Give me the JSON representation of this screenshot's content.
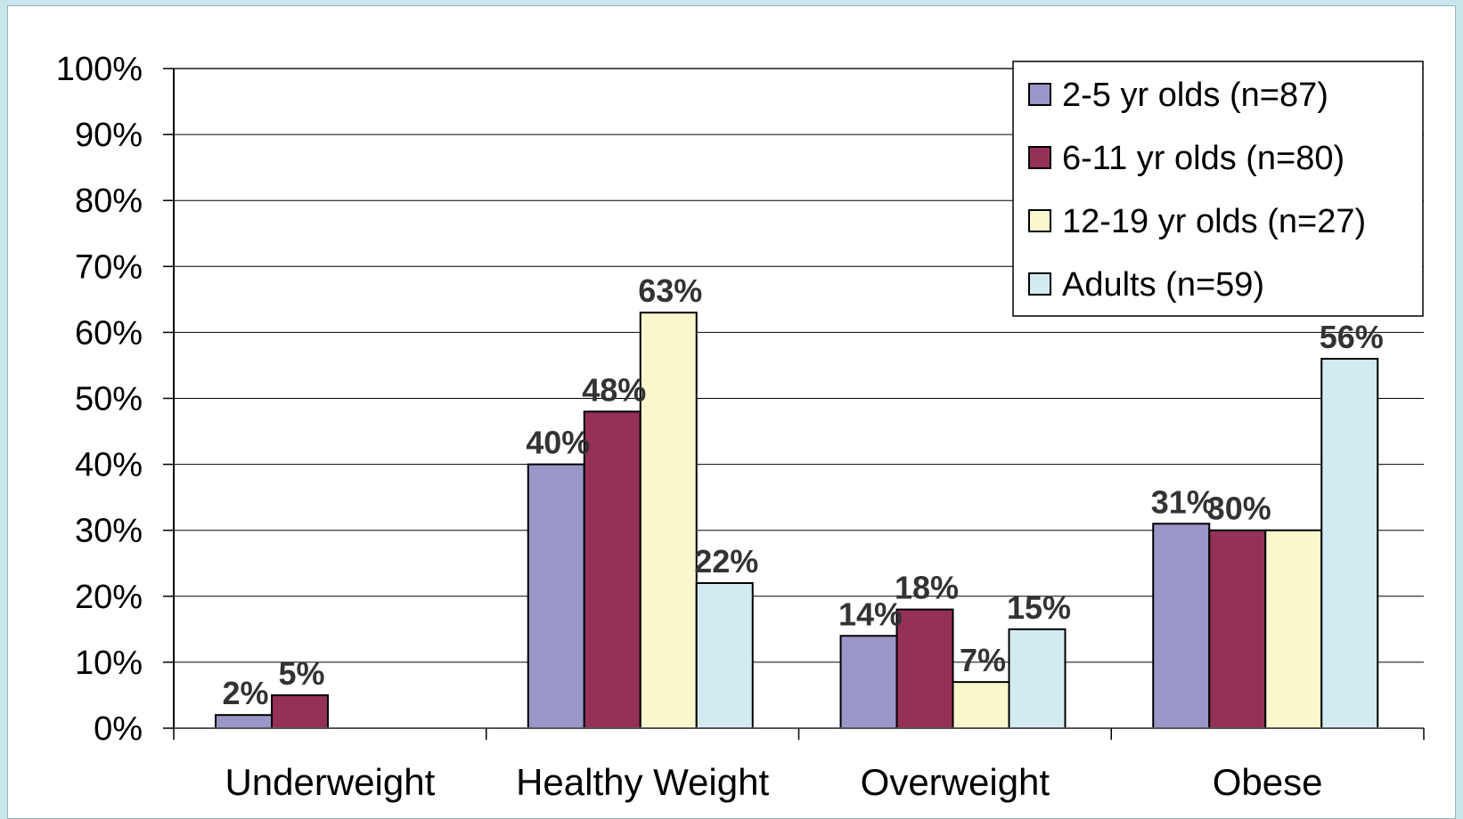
{
  "chart_data": {
    "type": "bar",
    "title": "",
    "xlabel": "",
    "ylabel": "",
    "ylim": [
      0,
      100
    ],
    "y_ticks": [
      "0%",
      "10%",
      "20%",
      "30%",
      "40%",
      "50%",
      "60%",
      "70%",
      "80%",
      "90%",
      "100%"
    ],
    "grid": true,
    "legend_position": "top-right",
    "categories": [
      "Underweight",
      "Healthy Weight",
      "Overweight",
      "Obese"
    ],
    "series": [
      {
        "name": "2-5 yr olds (n=87)",
        "color": "#9a96c8",
        "values": [
          2,
          40,
          14,
          31
        ],
        "labels": [
          "2%",
          "40%",
          "14%",
          "31%"
        ]
      },
      {
        "name": "6-11 yr olds (n=80)",
        "color": "#953059",
        "values": [
          5,
          48,
          18,
          30
        ],
        "labels": [
          "5%",
          "48%",
          "18%",
          "30%"
        ]
      },
      {
        "name": "12-19 yr olds (n=27)",
        "color": "#fbf7cc",
        "values": [
          null,
          63,
          7,
          30
        ],
        "labels": [
          "",
          "63%",
          "7%",
          ""
        ]
      },
      {
        "name": "Adults (n=59)",
        "color": "#d2ebf1",
        "values": [
          null,
          22,
          15,
          56
        ],
        "labels": [
          "",
          "22%",
          "15%",
          "56%"
        ]
      }
    ]
  }
}
